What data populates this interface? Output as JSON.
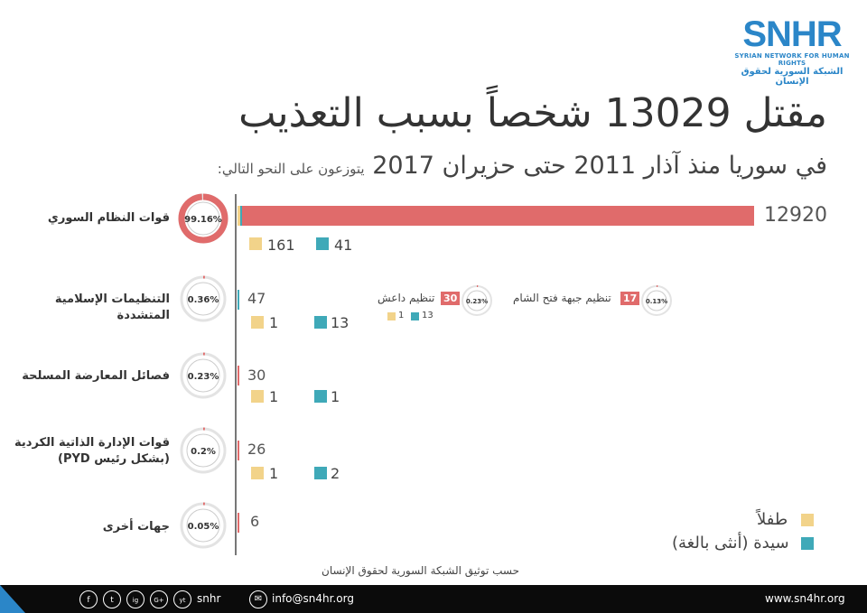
{
  "logo": {
    "mark": "SNHR",
    "sub_en": "SYRIAN NETWORK FOR HUMAN RIGHTS",
    "sub_ar": "الشبكة السورية لحقوق الإنسان"
  },
  "title": {
    "main": "مقتل 13029 شخصاً بسبب التعذيب",
    "sub_main": "في سوريا منذ آذار 2011 حتى حزيران 2017",
    "sub_small": "يتوزعون على النحو التالي:"
  },
  "chart_data": {
    "type": "bar",
    "categories": [
      "قوات النظام السوري",
      "التنظيمات الإسلامية المتشددة",
      "فصائل المعارضة المسلحة",
      "قوات الإدارة الذاتية الكردية (بشكل رئيس PYD)",
      "جهات أخرى"
    ],
    "values": [
      12920,
      47,
      30,
      26,
      6
    ],
    "percentages": [
      "99.16%",
      "0.36%",
      "0.23%",
      "0.2%",
      "0.05%"
    ],
    "percent_values": [
      99.16,
      0.36,
      0.23,
      0.2,
      0.05
    ],
    "series": [
      {
        "name": "طفلاً",
        "values": [
          161,
          1,
          1,
          1,
          null
        ],
        "color": "#f2d38a"
      },
      {
        "name": "سيدة (أنثى بالغة)",
        "values": [
          41,
          13,
          1,
          2,
          null
        ],
        "color": "#3fa9b8"
      }
    ],
    "breakdown": [
      {
        "name": "تنظيم داعش",
        "total": "30",
        "percent": "0.23%",
        "children": "1",
        "women": "13"
      },
      {
        "name": "تنظيم جبهة فتح الشام",
        "total": "17",
        "percent": "0.13%"
      }
    ],
    "bar_color": "#e06b6b",
    "legend_placement": "bottom-right"
  },
  "labels": {
    "cat": [
      "قوات النظام السوري",
      "التنظيمات الإسلامية المتشددة",
      "فصائل المعارضة المسلحة",
      "قوات الإدارة الذاتية الكردية",
      "(بشكل رئيس PYD)",
      "جهات أخرى"
    ],
    "pct": [
      "99.16%",
      "0.36%",
      "0.23%",
      "0.2%",
      "0.05%"
    ],
    "val": [
      "12920",
      "47",
      "30",
      "26",
      "6"
    ],
    "children": [
      "161",
      "1",
      "1",
      "1"
    ],
    "women": [
      "41",
      "13",
      "1",
      "2"
    ],
    "isis_name": "تنظيم داعش",
    "isis_total": "30",
    "isis_pct": "0.23%",
    "isis_children": "1",
    "isis_women": "13",
    "hts_name": "تنظيم جبهة فتح الشام",
    "hts_total": "17",
    "hts_pct": "0.13%",
    "legend_children": "طفلاً",
    "legend_women": "سيدة (أنثى بالغة)"
  },
  "source_note": "حسب توثيق الشبكة السورية لحقوق الإنسان",
  "footer": {
    "icons": [
      "f",
      "t",
      "ig",
      "G+",
      "yt"
    ],
    "handle": "snhr",
    "email": "info@sn4hr.org",
    "website": "www.sn4hr.org"
  },
  "colors": {
    "accent": "#2b86c8",
    "bar": "#e06b6b",
    "children": "#f2d38a",
    "women": "#3fa9b8"
  }
}
